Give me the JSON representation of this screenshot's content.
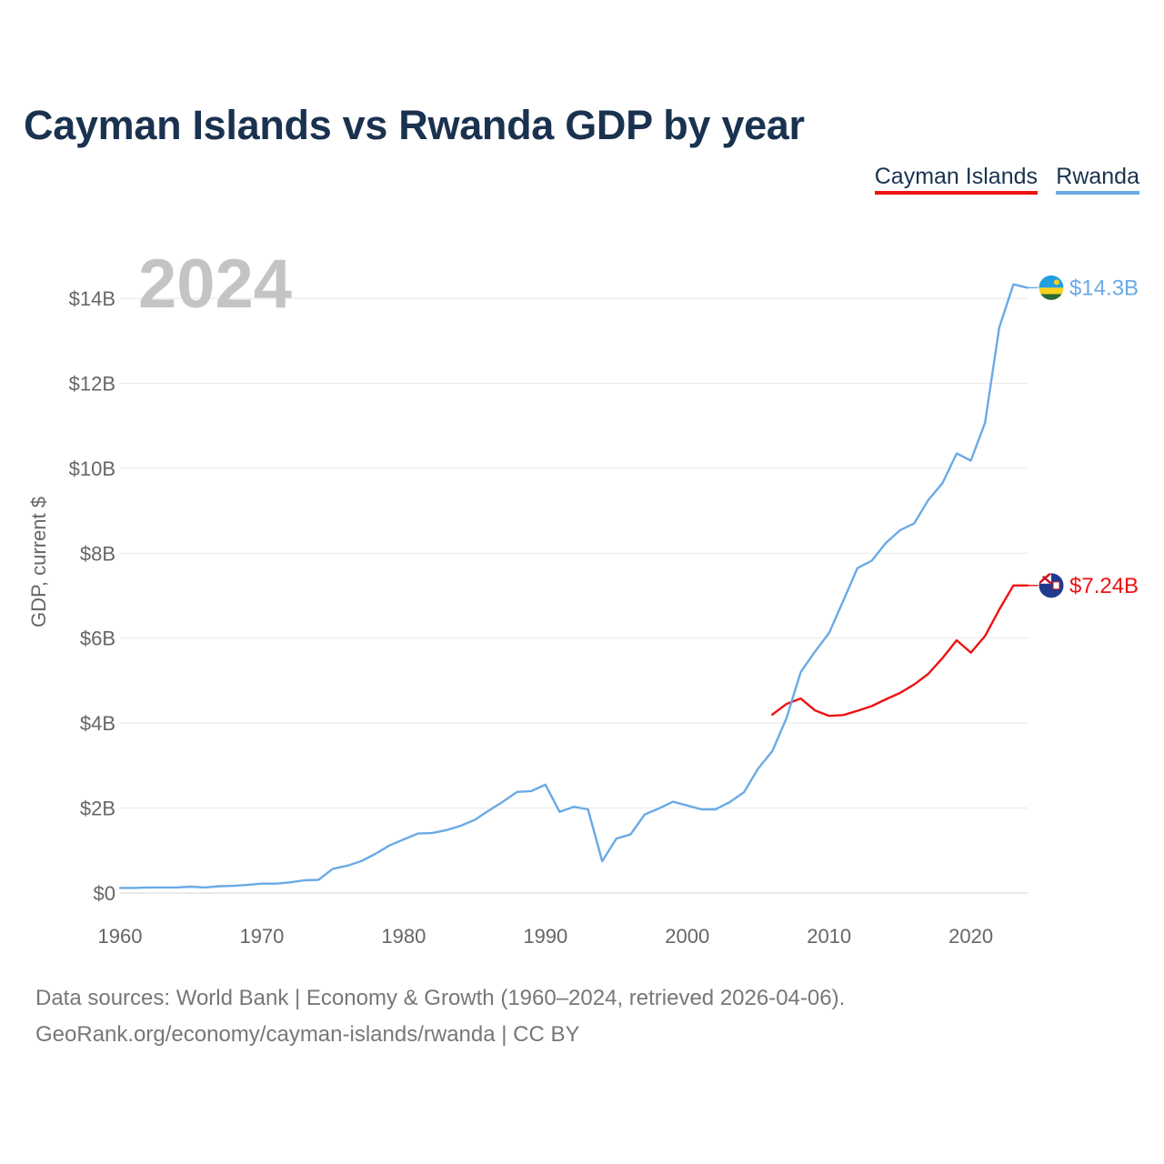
{
  "chart_data": {
    "type": "line",
    "title": "Cayman Islands vs Rwanda GDP by year",
    "ylabel": "GDP, current $",
    "xlabel": "",
    "year_label": "2024",
    "xlim": [
      1960,
      2024
    ],
    "ylim": [
      0,
      15.5
    ],
    "x_ticks": [
      1960,
      1970,
      1980,
      1990,
      2000,
      2010,
      2020
    ],
    "y_ticks": [
      {
        "value": 0,
        "label": "$0"
      },
      {
        "value": 2,
        "label": "$2B"
      },
      {
        "value": 4,
        "label": "$4B"
      },
      {
        "value": 6,
        "label": "$6B"
      },
      {
        "value": 8,
        "label": "$8B"
      },
      {
        "value": 10,
        "label": "$10B"
      },
      {
        "value": 12,
        "label": "$12B"
      },
      {
        "value": 14,
        "label": "$14B"
      }
    ],
    "legend_position": "top-right",
    "series": [
      {
        "name": "Cayman Islands",
        "color": "#ee1111",
        "end_label": "$7.24B",
        "flag_icon": "cayman-islands-flag-icon",
        "x": [
          2006,
          2007,
          2008,
          2009,
          2010,
          2011,
          2012,
          2013,
          2014,
          2015,
          2016,
          2017,
          2018,
          2019,
          2020,
          2021,
          2022,
          2023,
          2024
        ],
        "values": [
          4.2,
          4.45,
          4.58,
          4.3,
          4.17,
          4.19,
          4.29,
          4.4,
          4.56,
          4.71,
          4.91,
          5.16,
          5.53,
          5.95,
          5.66,
          6.05,
          6.67,
          7.24,
          7.24
        ]
      },
      {
        "name": "Rwanda",
        "color": "#6aaae6",
        "end_label": "$14.3B",
        "flag_icon": "rwanda-flag-icon",
        "x": [
          1960,
          1961,
          1962,
          1963,
          1964,
          1965,
          1966,
          1967,
          1968,
          1969,
          1970,
          1971,
          1972,
          1973,
          1974,
          1975,
          1976,
          1977,
          1978,
          1979,
          1980,
          1981,
          1982,
          1983,
          1984,
          1985,
          1986,
          1987,
          1988,
          1989,
          1990,
          1991,
          1992,
          1993,
          1994,
          1995,
          1996,
          1997,
          1998,
          1999,
          2000,
          2001,
          2002,
          2003,
          2004,
          2005,
          2006,
          2007,
          2008,
          2009,
          2010,
          2011,
          2012,
          2013,
          2014,
          2015,
          2016,
          2017,
          2018,
          2019,
          2020,
          2021,
          2022,
          2023,
          2024
        ],
        "values": [
          0.12,
          0.12,
          0.13,
          0.13,
          0.13,
          0.15,
          0.13,
          0.16,
          0.17,
          0.19,
          0.22,
          0.22,
          0.25,
          0.3,
          0.31,
          0.57,
          0.64,
          0.75,
          0.92,
          1.12,
          1.26,
          1.4,
          1.41,
          1.48,
          1.58,
          1.72,
          1.94,
          2.15,
          2.38,
          2.4,
          2.55,
          1.91,
          2.03,
          1.97,
          0.75,
          1.28,
          1.38,
          1.85,
          1.99,
          2.15,
          2.06,
          1.97,
          1.97,
          2.14,
          2.37,
          2.93,
          3.34,
          4.12,
          5.2,
          5.68,
          6.12,
          6.88,
          7.65,
          7.82,
          8.24,
          8.54,
          8.7,
          9.25,
          9.65,
          10.35,
          10.18,
          11.07,
          13.31,
          14.33,
          14.25
        ]
      }
    ]
  },
  "footer": {
    "source": "Data sources: World Bank | Economy & Growth (1960–2024, retrieved 2026-04-06).",
    "credit": "GeoRank.org/economy/cayman-islands/rwanda | CC BY"
  }
}
